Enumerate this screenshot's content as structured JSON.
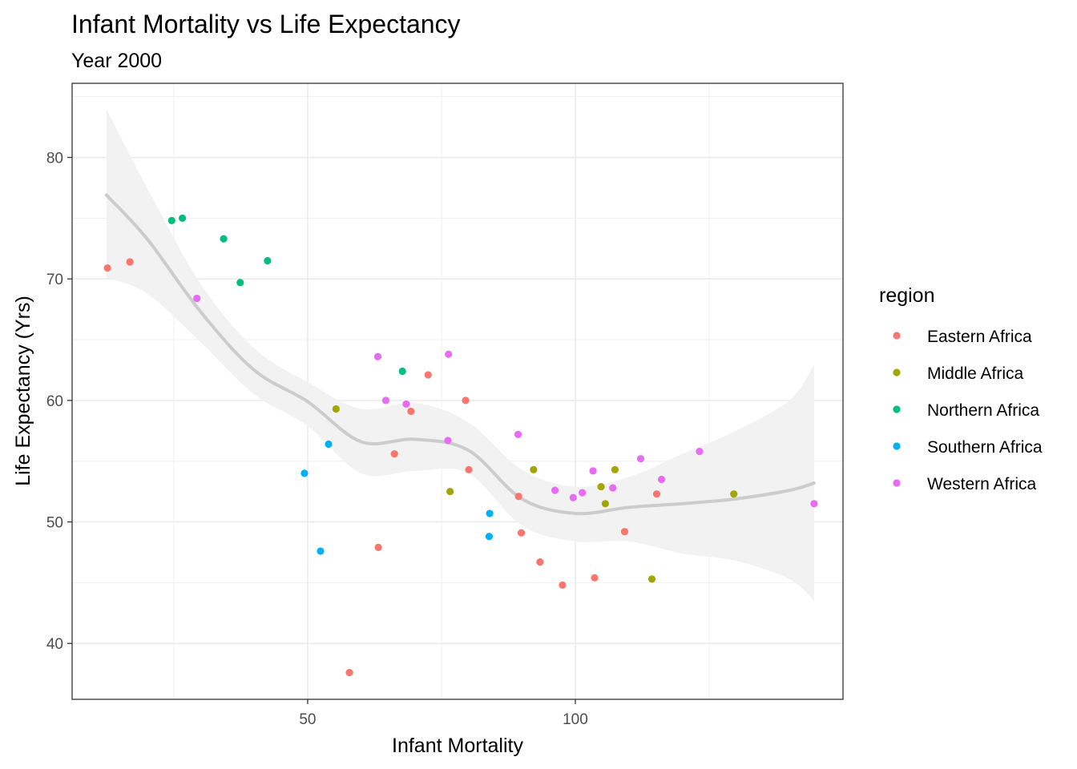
{
  "chart_data": {
    "type": "scatter",
    "title": "Infant Mortality vs Life Expectancy",
    "subtitle": "Year 2000",
    "xlabel": "Infant Mortality",
    "ylabel": "Life Expectancy (Yrs)",
    "xlim": [
      6,
      150
    ],
    "ylim": [
      35.4,
      86.1
    ],
    "x_ticks": [
      50,
      100
    ],
    "y_ticks": [
      40,
      50,
      60,
      70,
      80
    ],
    "grid": true,
    "legend": {
      "title": "region",
      "position": "right",
      "entries": [
        {
          "name": "Eastern Africa",
          "color": "#F8766D"
        },
        {
          "name": "Middle Africa",
          "color": "#A3A500"
        },
        {
          "name": "Northern Africa",
          "color": "#00BF7D"
        },
        {
          "name": "Southern Africa",
          "color": "#00B0F6"
        },
        {
          "name": "Western Africa",
          "color": "#E76BF3"
        }
      ]
    },
    "series": [
      {
        "name": "Eastern Africa",
        "color": "#F8766D",
        "points": [
          [
            12.6,
            70.9
          ],
          [
            16.8,
            71.4
          ],
          [
            57.8,
            37.6
          ],
          [
            63.2,
            47.9
          ],
          [
            66.2,
            55.6
          ],
          [
            69.3,
            59.1
          ],
          [
            72.5,
            62.1
          ],
          [
            79.5,
            60.0
          ],
          [
            80.1,
            54.3
          ],
          [
            89.4,
            52.1
          ],
          [
            89.9,
            49.1
          ],
          [
            93.4,
            46.7
          ],
          [
            97.6,
            44.8
          ],
          [
            103.6,
            45.4
          ],
          [
            109.2,
            49.2
          ],
          [
            115.2,
            52.3
          ]
        ]
      },
      {
        "name": "Middle Africa",
        "color": "#A3A500",
        "points": [
          [
            55.3,
            59.3
          ],
          [
            76.6,
            52.5
          ],
          [
            92.2,
            54.3
          ],
          [
            104.8,
            52.9
          ],
          [
            105.6,
            51.5
          ],
          [
            107.4,
            54.3
          ],
          [
            114.3,
            45.3
          ],
          [
            129.6,
            52.3
          ]
        ]
      },
      {
        "name": "Northern Africa",
        "color": "#00BF7D",
        "points": [
          [
            24.6,
            74.8
          ],
          [
            26.6,
            75.0
          ],
          [
            34.3,
            73.3
          ],
          [
            37.4,
            69.7
          ],
          [
            42.5,
            71.5
          ],
          [
            67.7,
            62.4
          ]
        ]
      },
      {
        "name": "Southern Africa",
        "color": "#00B0F6",
        "points": [
          [
            49.4,
            54.0
          ],
          [
            52.4,
            47.6
          ],
          [
            53.9,
            56.4
          ],
          [
            84.0,
            50.7
          ],
          [
            83.9,
            48.8
          ]
        ]
      },
      {
        "name": "Western Africa",
        "color": "#E76BF3",
        "points": [
          [
            29.3,
            68.4
          ],
          [
            63.1,
            63.6
          ],
          [
            64.6,
            60.0
          ],
          [
            68.4,
            59.7
          ],
          [
            76.2,
            56.7
          ],
          [
            76.3,
            63.8
          ],
          [
            89.3,
            57.2
          ],
          [
            96.2,
            52.6
          ],
          [
            99.6,
            52.0
          ],
          [
            101.3,
            52.4
          ],
          [
            103.3,
            54.2
          ],
          [
            107.0,
            52.8
          ],
          [
            112.2,
            55.2
          ],
          [
            116.1,
            53.5
          ],
          [
            123.2,
            55.8
          ],
          [
            144.6,
            51.5
          ]
        ]
      }
    ],
    "smooth": {
      "x": [
        12.4,
        20,
        30,
        40,
        50,
        60,
        70,
        80,
        90,
        100,
        110,
        120,
        130,
        140,
        144.6
      ],
      "y": [
        76.9,
        73.3,
        67.3,
        62.5,
        59.9,
        56.6,
        56.8,
        55.9,
        51.9,
        50.7,
        51.2,
        51.5,
        51.9,
        52.6,
        53.2
      ],
      "lower": [
        70.1,
        68.8,
        64.8,
        60.5,
        57.9,
        54.0,
        54.2,
        54.0,
        49.7,
        48.4,
        48.4,
        47.4,
        46.8,
        45.3,
        43.5
      ],
      "upper": [
        84.0,
        77.5,
        69.6,
        64.3,
        61.5,
        59.3,
        59.8,
        58.2,
        54.3,
        52.9,
        53.7,
        55.6,
        57.5,
        60.0,
        62.9
      ]
    }
  }
}
